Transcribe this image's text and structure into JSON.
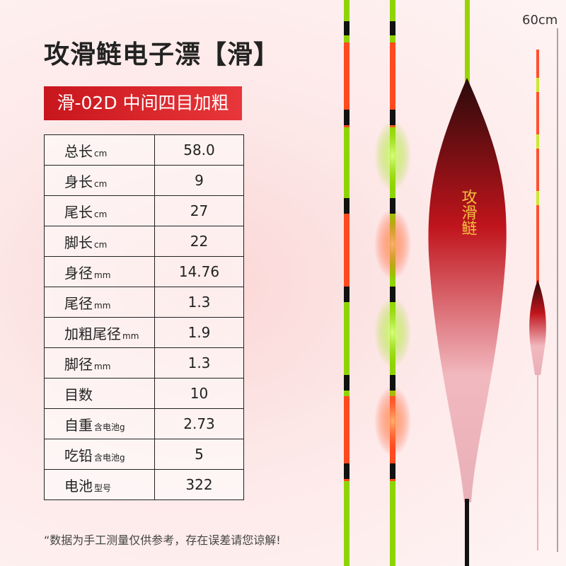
{
  "header": {
    "title": "攻滑鲢电子漂【滑】",
    "model": "滑-02D 中间四目加粗",
    "scale": "60cm"
  },
  "table": {
    "rows": [
      {
        "label": "总长",
        "unit": "cm",
        "value": "58.0"
      },
      {
        "label": "身长",
        "unit": "cm",
        "value": "9"
      },
      {
        "label": "尾长",
        "unit": "cm",
        "value": "27"
      },
      {
        "label": "脚长",
        "unit": "cm",
        "value": "22"
      },
      {
        "label": "身径",
        "unit": "mm",
        "value": "14.76"
      },
      {
        "label": "尾径",
        "unit": "mm",
        "value": "1.3"
      },
      {
        "label": "加粗尾径",
        "unit": "mm",
        "value": "1.9"
      },
      {
        "label": "脚径",
        "unit": "mm",
        "value": "1.3"
      },
      {
        "label": "目数",
        "unit": "",
        "value": "10"
      },
      {
        "label": "自重",
        "unit": "含电池g",
        "value": "2.73"
      },
      {
        "label": "吃铅",
        "unit": "含电池g",
        "value": "5"
      },
      {
        "label": "电池",
        "unit": "型号",
        "value": "322"
      }
    ]
  },
  "float_label": "攻滑鲢",
  "footnote": "“数据为手工测量仅供参考，存在误差请您谅解!"
}
